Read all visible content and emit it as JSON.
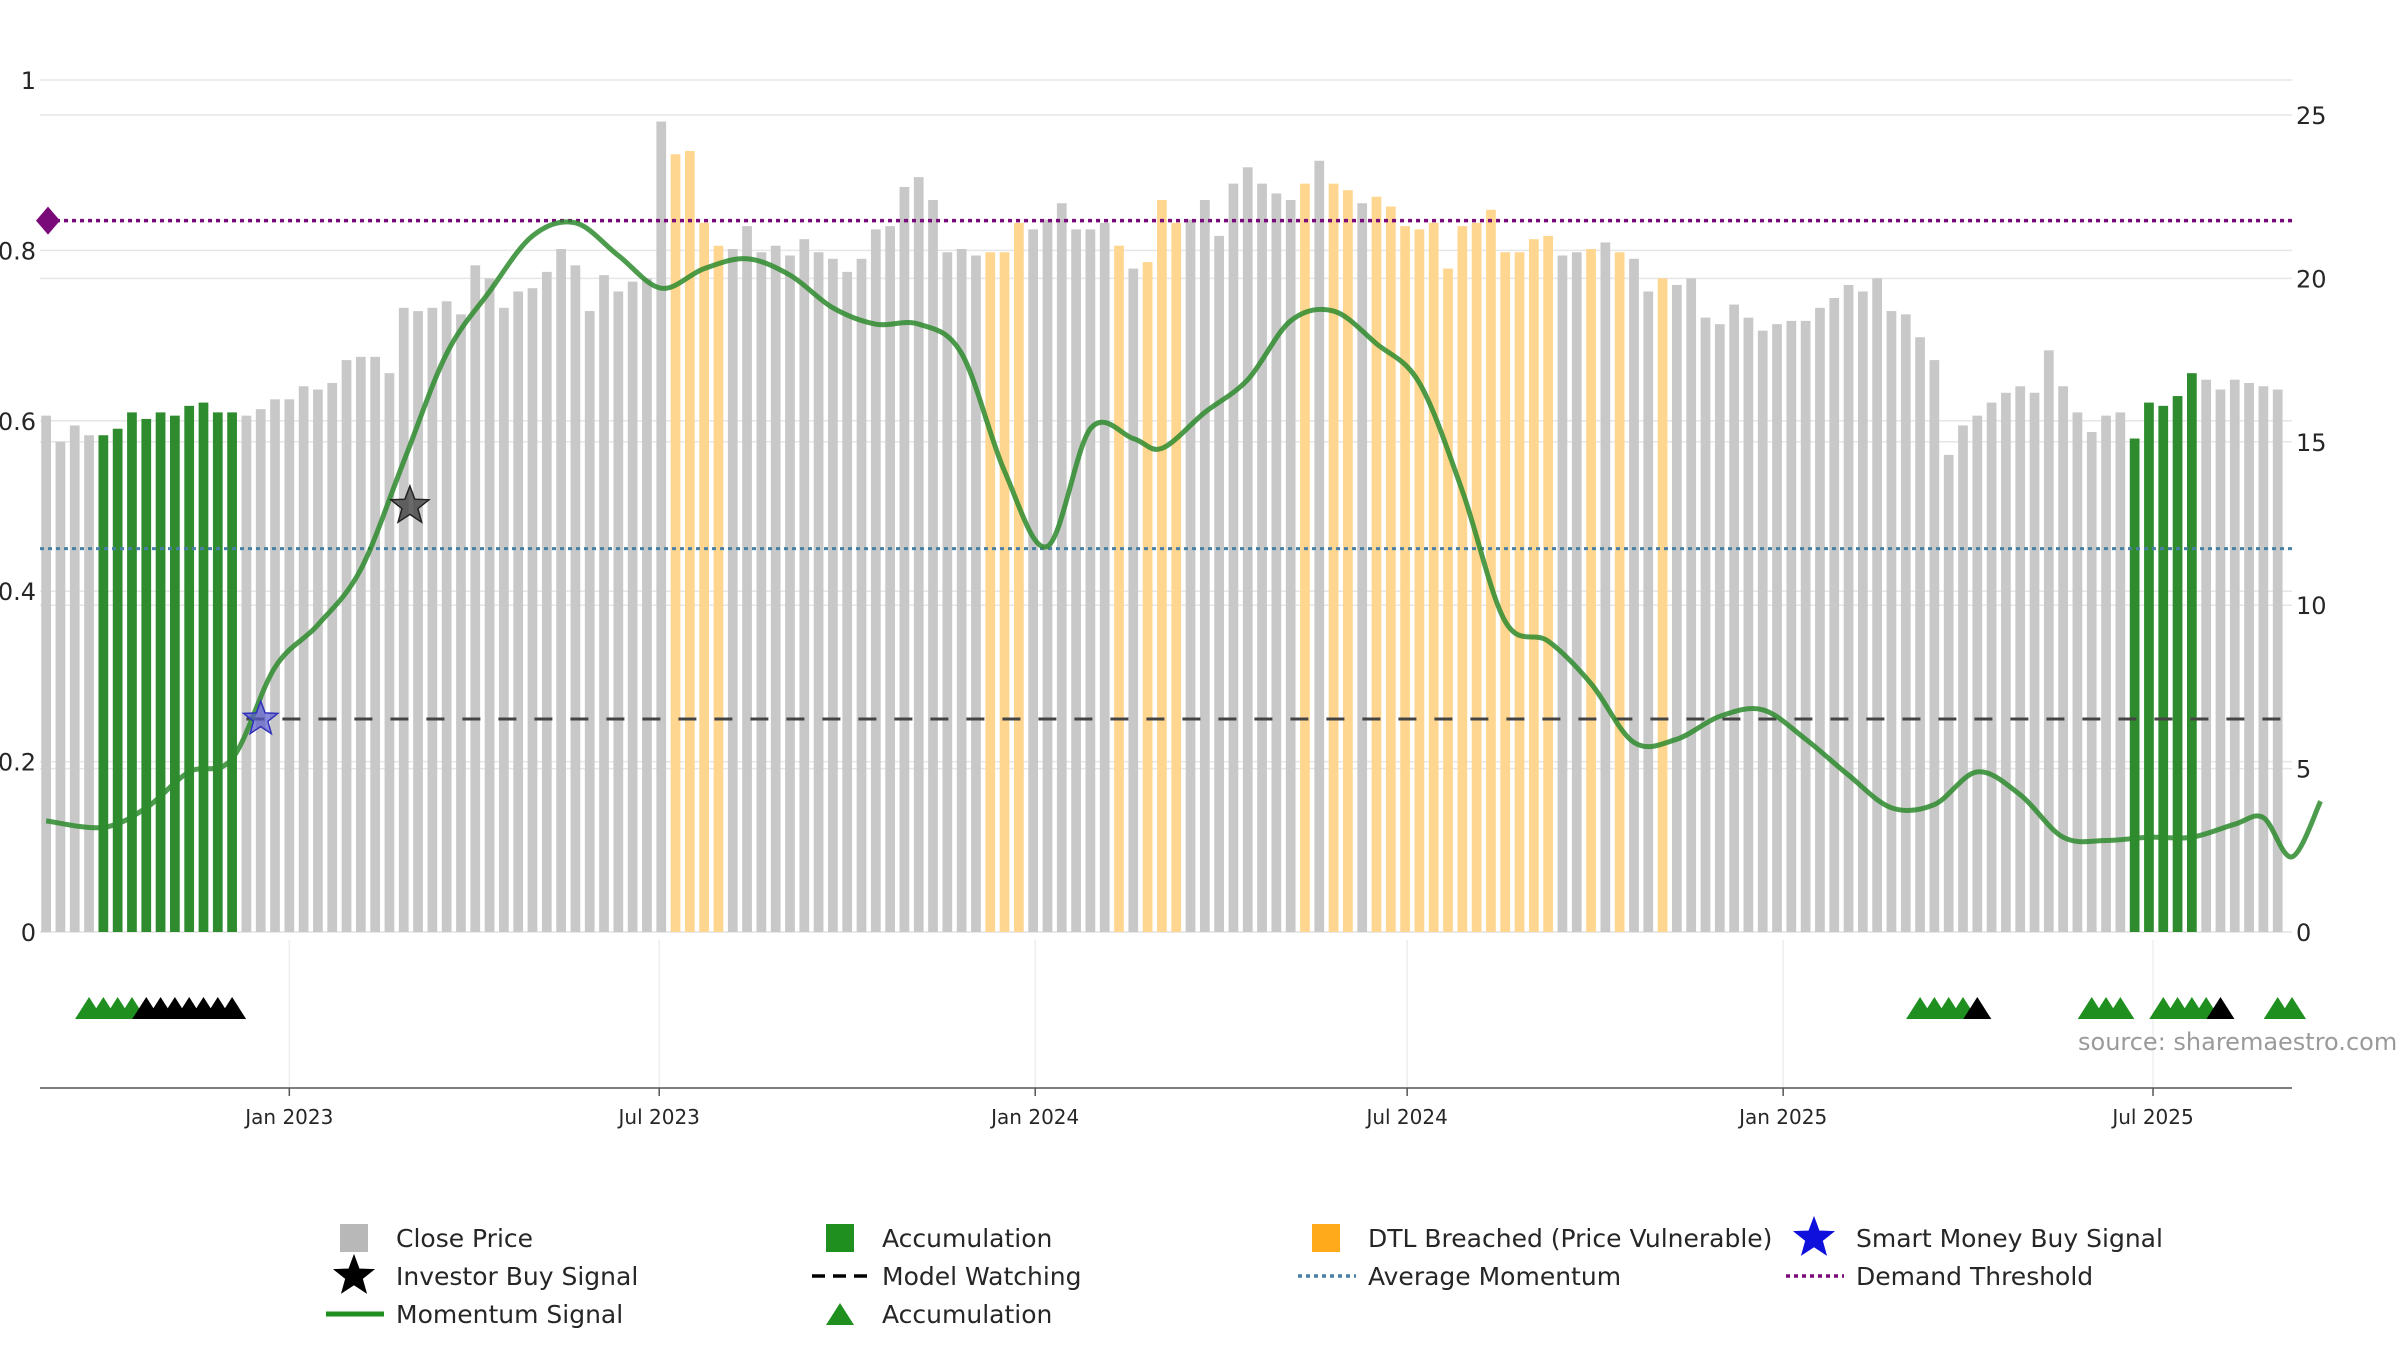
{
  "chart_data": {
    "type": "bar",
    "title": "",
    "xlabel": "",
    "ylabel_left": "",
    "ylabel_right": "",
    "source": "source: sharemaestro.com",
    "left_axis": {
      "ylim": [
        0,
        1
      ],
      "ticks": [
        0,
        0.2,
        0.4,
        0.6,
        0.8,
        1
      ],
      "tick_labels": [
        "0",
        "0.2",
        "0.4",
        "0.6",
        "0.8",
        "1"
      ]
    },
    "right_axis": {
      "ylim": [
        0,
        25
      ],
      "ticks": [
        0,
        5,
        10,
        15,
        20,
        25
      ],
      "tick_labels": [
        "0",
        "5",
        "10",
        "15",
        "20",
        "25"
      ]
    },
    "x_range": [
      "2022-09-01",
      "2025-09-07"
    ],
    "x_ticks": [
      {
        "date": "2023-01-01",
        "label": "Jan 2023"
      },
      {
        "date": "2023-07-01",
        "label": "Jul 2023"
      },
      {
        "date": "2024-01-01",
        "label": "Jan 2024"
      },
      {
        "date": "2024-07-01",
        "label": "Jul 2024"
      },
      {
        "date": "2025-01-01",
        "label": "Jan 2025"
      },
      {
        "date": "2025-07-01",
        "label": "Jul 2025"
      }
    ],
    "bar_start_date": "2022-09-04",
    "bar_interval_days": 7,
    "close_price": [
      15.8,
      15.0,
      15.5,
      15.2,
      15.2,
      15.4,
      15.9,
      15.7,
      15.9,
      15.8,
      16.1,
      16.2,
      15.9,
      15.9,
      15.8,
      16.0,
      16.3,
      16.3,
      16.7,
      16.6,
      16.8,
      17.5,
      17.6,
      17.6,
      17.1,
      19.1,
      19.0,
      19.1,
      19.3,
      18.9,
      20.4,
      20.0,
      19.1,
      19.6,
      19.7,
      20.2,
      20.9,
      20.4,
      19.0,
      20.1,
      19.6,
      19.9,
      20.0,
      24.8,
      23.8,
      23.9,
      21.7,
      21.0,
      20.9,
      21.6,
      20.8,
      21.0,
      20.7,
      21.2,
      20.8,
      20.6,
      20.2,
      20.6,
      21.5,
      21.6,
      22.8,
      23.1,
      22.4,
      20.8,
      20.9,
      20.7,
      20.8,
      20.8,
      21.7,
      21.5,
      21.8,
      22.3,
      21.5,
      21.5,
      21.7,
      21.0,
      20.3,
      20.5,
      22.4,
      21.7,
      21.8,
      22.4,
      21.3,
      22.9,
      23.4,
      22.9,
      22.6,
      22.4,
      22.9,
      23.6,
      22.9,
      22.7,
      22.3,
      22.5,
      22.2,
      21.6,
      21.5,
      21.7,
      20.3,
      21.6,
      21.7,
      22.1,
      20.8,
      20.8,
      21.2,
      21.3,
      20.7,
      20.8,
      20.9,
      21.1,
      20.8,
      20.6,
      19.6,
      20.0,
      19.8,
      20.0,
      18.8,
      18.6,
      19.2,
      18.8,
      18.4,
      18.6,
      18.7,
      18.7,
      19.1,
      19.4,
      19.8,
      19.6,
      20.0,
      19.0,
      18.9,
      18.2,
      17.5,
      14.6,
      15.5,
      15.8,
      16.2,
      16.5,
      16.7,
      16.5,
      17.8,
      16.7,
      15.9,
      15.3,
      15.8,
      15.9,
      15.1,
      16.2,
      16.1,
      16.4,
      17.1,
      16.9,
      16.6,
      16.9,
      16.8,
      16.7,
      16.6
    ],
    "bar_state": "GGGGAAAAAAAAAAGGGGGGGGGGGGGGGGGGGGGGGGGGGGGGDDDDGGGGGGGGGGGGGGGGGGDDDGGGGGGDGDDDGGGGGGGGDGDDGDDDDDDDDDDDDDGGDGDGGDGGGGGGGGGGGGGGGGGGGGGGGGGGGGGGGGAAAAAGGGGGGAAAGGAAAAAGGGGAG",
    "momentum": [
      [
        0,
        3.4
      ],
      [
        4,
        3.2
      ],
      [
        7,
        3.8
      ],
      [
        10,
        4.9
      ],
      [
        13,
        5.3
      ],
      [
        16,
        8.1
      ],
      [
        19,
        9.4
      ],
      [
        22,
        11.1
      ],
      [
        25,
        14.4
      ],
      [
        28,
        17.7
      ],
      [
        31,
        19.6
      ],
      [
        34,
        21.3
      ],
      [
        37,
        21.7
      ],
      [
        40,
        20.7
      ],
      [
        43,
        19.7
      ],
      [
        46,
        20.3
      ],
      [
        49,
        20.6
      ],
      [
        52,
        20.1
      ],
      [
        55,
        19.1
      ],
      [
        58,
        18.6
      ],
      [
        61,
        18.6
      ],
      [
        64,
        17.7
      ],
      [
        67,
        14.1
      ],
      [
        70,
        11.8
      ],
      [
        73,
        15.4
      ],
      [
        76,
        15.1
      ],
      [
        78,
        14.8
      ],
      [
        81,
        15.9
      ],
      [
        84,
        16.9
      ],
      [
        87,
        18.7
      ],
      [
        90,
        19.0
      ],
      [
        93,
        18.0
      ],
      [
        96,
        16.8
      ],
      [
        99,
        13.5
      ],
      [
        102,
        9.5
      ],
      [
        105,
        8.9
      ],
      [
        108,
        7.6
      ],
      [
        111,
        5.8
      ],
      [
        114,
        5.9
      ],
      [
        117,
        6.6
      ],
      [
        120,
        6.8
      ],
      [
        123,
        5.9
      ],
      [
        126,
        4.8
      ],
      [
        129,
        3.8
      ],
      [
        132,
        3.9
      ],
      [
        135,
        4.9
      ],
      [
        138,
        4.2
      ],
      [
        141,
        2.9
      ],
      [
        144,
        2.8
      ],
      [
        147,
        2.9
      ],
      [
        150,
        2.9
      ],
      [
        153,
        3.3
      ],
      [
        155,
        3.5
      ],
      [
        157,
        2.3
      ],
      [
        159,
        4.0
      ]
    ],
    "demand_threshold": 0.835,
    "average_momentum": 0.45,
    "model_watching": {
      "value": 0.25,
      "from": "2022-12-11"
    },
    "investor_buy_signal": {
      "date": "2023-03-01",
      "value": 0.5
    },
    "smart_money_buy_signal": {
      "date": "2022-12-18",
      "value": 0.25
    },
    "triangle_markers": [
      {
        "i": 3,
        "c": "green"
      },
      {
        "i": 4,
        "c": "green"
      },
      {
        "i": 5,
        "c": "green"
      },
      {
        "i": 6,
        "c": "green"
      },
      {
        "i": 7,
        "c": "black"
      },
      {
        "i": 8,
        "c": "black"
      },
      {
        "i": 9,
        "c": "black"
      },
      {
        "i": 10,
        "c": "black"
      },
      {
        "i": 11,
        "c": "black"
      },
      {
        "i": 12,
        "c": "black"
      },
      {
        "i": 13,
        "c": "black"
      },
      {
        "i": 131,
        "c": "green"
      },
      {
        "i": 132,
        "c": "green"
      },
      {
        "i": 133,
        "c": "green"
      },
      {
        "i": 134,
        "c": "green"
      },
      {
        "i": 135,
        "c": "black"
      },
      {
        "i": 143,
        "c": "green"
      },
      {
        "i": 144,
        "c": "green"
      },
      {
        "i": 145,
        "c": "green"
      },
      {
        "i": 148,
        "c": "green"
      },
      {
        "i": 149,
        "c": "green"
      },
      {
        "i": 150,
        "c": "green"
      },
      {
        "i": 151,
        "c": "green"
      },
      {
        "i": 152,
        "c": "black"
      },
      {
        "i": 156,
        "c": "green"
      },
      {
        "i": 157,
        "c": "green"
      }
    ],
    "colors": {
      "close_price": "#c8c8c8",
      "accumulation": "#2e8b2e",
      "dtl": "#ffd690",
      "momentum": "#2e8b2e",
      "demand_threshold": "#7a0a7a",
      "average_momentum": "#4a7fa6",
      "model_watching": "#444444",
      "smart_money": "#1010dd",
      "grid": "#e6e6e6"
    },
    "grid": true,
    "legend_position": "bottom",
    "legend": [
      {
        "label": "Close Price",
        "symbol": "square",
        "color": "#b8b8b8"
      },
      {
        "label": "Accumulation",
        "symbol": "square",
        "color": "#1f8f1f"
      },
      {
        "label": "DTL Breached (Price Vulnerable)",
        "symbol": "square",
        "color": "#ffaa1a"
      },
      {
        "label": "Smart Money Buy Signal",
        "symbol": "star",
        "color": "#1010dd"
      },
      {
        "label": "Investor Buy Signal",
        "symbol": "star",
        "color": "#000000"
      },
      {
        "label": "Model Watching",
        "symbol": "dashed",
        "color": "#000000"
      },
      {
        "label": "Average Momentum",
        "symbol": "dotted",
        "color": "#4a7fa6"
      },
      {
        "label": "Demand Threshold",
        "symbol": "dotted",
        "color": "#7a0a7a"
      },
      {
        "label": "Momentum Signal",
        "symbol": "line",
        "color": "#1f8f1f"
      },
      {
        "label": "Accumulation",
        "symbol": "triangle",
        "color": "#1f8f1f"
      }
    ]
  }
}
